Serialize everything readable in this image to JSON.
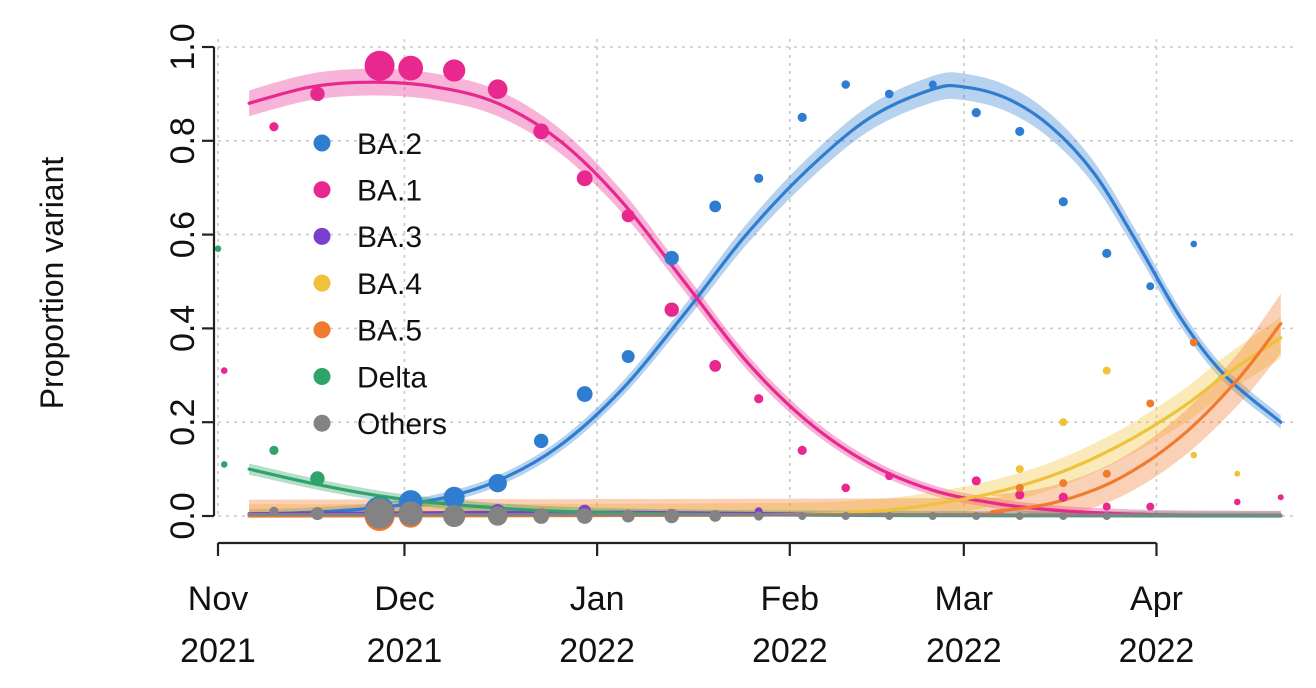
{
  "chart_data": {
    "type": "line",
    "title": "",
    "xlabel": "",
    "ylabel": "Proportion variant",
    "ylim": [
      0,
      1
    ],
    "xlim": [
      "2021-11-01",
      "2022-04-22"
    ],
    "y_ticks": [
      {
        "value": 0.0,
        "label": "0.0"
      },
      {
        "value": 0.2,
        "label": "0.2"
      },
      {
        "value": 0.4,
        "label": "0.4"
      },
      {
        "value": 0.6,
        "label": "0.6"
      },
      {
        "value": 0.8,
        "label": "0.8"
      },
      {
        "value": 1.0,
        "label": "1.0"
      }
    ],
    "x_ticks": [
      {
        "date": "2021-11-01",
        "month": "Nov",
        "year": "2021"
      },
      {
        "date": "2021-12-01",
        "month": "Dec",
        "year": "2021"
      },
      {
        "date": "2022-01-01",
        "month": "Jan",
        "year": "2022"
      },
      {
        "date": "2022-02-01",
        "month": "Feb",
        "year": "2022"
      },
      {
        "date": "2022-03-01",
        "month": "Mar",
        "year": "2022"
      },
      {
        "date": "2022-04-01",
        "month": "Apr",
        "year": "2022"
      }
    ],
    "grid": true,
    "legend_position": "left",
    "series": [
      {
        "name": "BA.2",
        "color": "#2e7dd1",
        "fit_range": [
          "2021-11-06",
          "2022-04-21"
        ],
        "fit": [
          [
            "2021-11-06",
            0.004
          ],
          [
            "2021-11-16",
            0.008
          ],
          [
            "2021-11-26",
            0.017
          ],
          [
            "2021-12-06",
            0.035
          ],
          [
            "2021-12-16",
            0.075
          ],
          [
            "2021-12-26",
            0.15
          ],
          [
            "2022-01-05",
            0.27
          ],
          [
            "2022-01-15",
            0.43
          ],
          [
            "2022-01-25",
            0.6
          ],
          [
            "2022-02-04",
            0.74
          ],
          [
            "2022-02-14",
            0.85
          ],
          [
            "2022-02-24",
            0.91
          ],
          [
            "2022-03-01",
            0.915
          ],
          [
            "2022-03-08",
            0.89
          ],
          [
            "2022-03-15",
            0.83
          ],
          [
            "2022-03-22",
            0.73
          ],
          [
            "2022-03-29",
            0.58
          ],
          [
            "2022-04-05",
            0.42
          ],
          [
            "2022-04-12",
            0.3
          ],
          [
            "2022-04-21",
            0.2
          ]
        ],
        "band": 0.02,
        "points": [
          [
            "2021-11-27",
            0.01,
            2
          ],
          [
            "2021-12-02",
            0.03,
            1.5
          ],
          [
            "2021-12-09",
            0.04,
            1.3
          ],
          [
            "2021-12-16",
            0.07,
            1.1
          ],
          [
            "2021-12-23",
            0.16,
            0.8
          ],
          [
            "2021-12-30",
            0.26,
            0.9
          ],
          [
            "2022-01-06",
            0.34,
            0.7
          ],
          [
            "2022-01-13",
            0.55,
            0.8
          ],
          [
            "2022-01-20",
            0.66,
            0.6
          ],
          [
            "2022-01-27",
            0.72,
            0.4
          ],
          [
            "2022-02-03",
            0.85,
            0.4
          ],
          [
            "2022-02-10",
            0.92,
            0.35
          ],
          [
            "2022-02-17",
            0.9,
            0.35
          ],
          [
            "2022-02-24",
            0.92,
            0.3
          ],
          [
            "2022-03-03",
            0.86,
            0.4
          ],
          [
            "2022-03-10",
            0.82,
            0.4
          ],
          [
            "2022-03-17",
            0.67,
            0.4
          ],
          [
            "2022-03-24",
            0.56,
            0.4
          ],
          [
            "2022-03-31",
            0.49,
            0.3
          ],
          [
            "2022-04-07",
            0.58,
            0.2
          ]
        ]
      },
      {
        "name": "BA.1",
        "color": "#e8288e",
        "fit_range": [
          "2021-11-06",
          "2022-04-21"
        ],
        "fit": [
          [
            "2021-11-06",
            0.88
          ],
          [
            "2021-11-16",
            0.915
          ],
          [
            "2021-11-26",
            0.925
          ],
          [
            "2021-12-06",
            0.915
          ],
          [
            "2021-12-16",
            0.88
          ],
          [
            "2021-12-26",
            0.8
          ],
          [
            "2022-01-05",
            0.67
          ],
          [
            "2022-01-15",
            0.5
          ],
          [
            "2022-01-25",
            0.33
          ],
          [
            "2022-02-04",
            0.2
          ],
          [
            "2022-02-14",
            0.11
          ],
          [
            "2022-02-24",
            0.055
          ],
          [
            "2022-03-06",
            0.027
          ],
          [
            "2022-03-16",
            0.012
          ],
          [
            "2022-03-26",
            0.005
          ],
          [
            "2022-04-05",
            0.002
          ],
          [
            "2022-04-21",
            0.001
          ]
        ],
        "band": 0.02,
        "points": [
          [
            "2021-11-02",
            0.31,
            0.2
          ],
          [
            "2021-11-10",
            0.83,
            0.4
          ],
          [
            "2021-11-17",
            0.9,
            0.8
          ],
          [
            "2021-11-27",
            0.96,
            2
          ],
          [
            "2021-12-02",
            0.955,
            1.6
          ],
          [
            "2021-12-09",
            0.95,
            1.4
          ],
          [
            "2021-12-16",
            0.91,
            1.2
          ],
          [
            "2021-12-23",
            0.82,
            0.9
          ],
          [
            "2021-12-30",
            0.72,
            0.9
          ],
          [
            "2022-01-06",
            0.64,
            0.7
          ],
          [
            "2022-01-13",
            0.44,
            0.8
          ],
          [
            "2022-01-20",
            0.32,
            0.6
          ],
          [
            "2022-01-27",
            0.25,
            0.4
          ],
          [
            "2022-02-03",
            0.14,
            0.4
          ],
          [
            "2022-02-10",
            0.06,
            0.35
          ],
          [
            "2022-02-17",
            0.085,
            0.3
          ],
          [
            "2022-03-03",
            0.075,
            0.4
          ],
          [
            "2022-03-10",
            0.045,
            0.4
          ],
          [
            "2022-03-17",
            0.04,
            0.4
          ],
          [
            "2022-03-24",
            0.02,
            0.3
          ],
          [
            "2022-03-31",
            0.02,
            0.3
          ],
          [
            "2022-04-14",
            0.03,
            0.2
          ],
          [
            "2022-04-21",
            0.04,
            0.15
          ]
        ]
      },
      {
        "name": "BA.3",
        "color": "#7b3fd0",
        "fit_range": [
          "2021-11-06",
          "2022-04-21"
        ],
        "fit": [
          [
            "2021-11-06",
            0.005
          ],
          [
            "2021-12-06",
            0.007
          ],
          [
            "2022-01-05",
            0.008
          ],
          [
            "2022-02-04",
            0.004
          ],
          [
            "2022-03-06",
            0.002
          ],
          [
            "2022-04-21",
            0.001
          ]
        ],
        "band": 0.004,
        "points": [
          [
            "2021-12-16",
            0.01,
            0.8
          ],
          [
            "2021-12-30",
            0.01,
            0.7
          ],
          [
            "2022-01-27",
            0.01,
            0.3
          ]
        ]
      },
      {
        "name": "BA.4",
        "color": "#f0c23a",
        "fit_range": [
          "2021-11-06",
          "2022-04-21"
        ],
        "fit": [
          [
            "2021-11-06",
            0.0
          ],
          [
            "2022-01-25",
            0.002
          ],
          [
            "2022-02-14",
            0.01
          ],
          [
            "2022-02-24",
            0.025
          ],
          [
            "2022-03-06",
            0.05
          ],
          [
            "2022-03-16",
            0.09
          ],
          [
            "2022-03-26",
            0.15
          ],
          [
            "2022-04-05",
            0.23
          ],
          [
            "2022-04-12",
            0.3
          ],
          [
            "2022-04-21",
            0.38
          ]
        ],
        "band": 0.05,
        "points": [
          [
            "2022-03-10",
            0.1,
            0.3
          ],
          [
            "2022-03-17",
            0.2,
            0.3
          ],
          [
            "2022-03-24",
            0.31,
            0.3
          ],
          [
            "2022-04-07",
            0.13,
            0.2
          ],
          [
            "2022-04-14",
            0.09,
            0.15
          ]
        ]
      },
      {
        "name": "BA.5",
        "color": "#f07a2e",
        "fit_range": [
          "2021-11-06",
          "2022-04-21"
        ],
        "fit": [
          [
            "2021-11-06",
            0.0
          ],
          [
            "2022-02-24",
            0.003
          ],
          [
            "2022-03-06",
            0.01
          ],
          [
            "2022-03-16",
            0.03
          ],
          [
            "2022-03-26",
            0.08
          ],
          [
            "2022-04-05",
            0.17
          ],
          [
            "2022-04-14",
            0.29
          ],
          [
            "2022-04-21",
            0.41
          ]
        ],
        "band": 0.07,
        "points": [
          [
            "2021-11-27",
            0.0,
            2
          ],
          [
            "2021-12-02",
            0.0,
            1.5
          ],
          [
            "2022-03-10",
            0.06,
            0.3
          ],
          [
            "2022-03-17",
            0.07,
            0.3
          ],
          [
            "2022-03-24",
            0.09,
            0.3
          ],
          [
            "2022-03-31",
            0.24,
            0.3
          ],
          [
            "2022-04-07",
            0.37,
            0.3
          ]
        ]
      },
      {
        "name": "Delta",
        "color": "#2fa36a",
        "fit_range": [
          "2021-11-06",
          "2022-04-21"
        ],
        "fit": [
          [
            "2021-11-06",
            0.1
          ],
          [
            "2021-11-16",
            0.07
          ],
          [
            "2021-11-26",
            0.045
          ],
          [
            "2021-12-06",
            0.028
          ],
          [
            "2021-12-16",
            0.017
          ],
          [
            "2021-12-26",
            0.01
          ],
          [
            "2022-01-15",
            0.004
          ],
          [
            "2022-02-14",
            0.001
          ],
          [
            "2022-04-21",
            0.0
          ]
        ],
        "band": 0.02,
        "points": [
          [
            "2021-11-01",
            0.57,
            0.2
          ],
          [
            "2021-11-02",
            0.11,
            0.2
          ],
          [
            "2021-11-10",
            0.14,
            0.4
          ],
          [
            "2021-11-17",
            0.08,
            0.8
          ],
          [
            "2021-11-27",
            0.02,
            1.2
          ]
        ]
      },
      {
        "name": "Others",
        "color": "#838383",
        "fit_range": [
          "2021-11-06",
          "2022-04-21"
        ],
        "fit": [
          [
            "2021-11-06",
            0.003
          ],
          [
            "2022-04-21",
            0.002
          ]
        ],
        "band": 0.003,
        "points": [
          [
            "2021-11-10",
            0.01,
            0.4
          ],
          [
            "2021-11-17",
            0.005,
            0.7
          ],
          [
            "2021-11-27",
            0.005,
            2
          ],
          [
            "2021-12-02",
            0.005,
            1.6
          ],
          [
            "2021-12-09",
            0.0,
            1.4
          ],
          [
            "2021-12-16",
            0.0,
            1.2
          ],
          [
            "2021-12-23",
            0.0,
            0.9
          ],
          [
            "2021-12-30",
            0.0,
            0.9
          ],
          [
            "2022-01-06",
            0.0,
            0.7
          ],
          [
            "2022-01-13",
            0.0,
            0.8
          ],
          [
            "2022-01-20",
            0.0,
            0.6
          ],
          [
            "2022-01-27",
            0.0,
            0.4
          ],
          [
            "2022-02-03",
            0.0,
            0.3
          ],
          [
            "2022-02-10",
            0.0,
            0.3
          ],
          [
            "2022-02-17",
            0.0,
            0.3
          ],
          [
            "2022-02-24",
            0.0,
            0.3
          ],
          [
            "2022-03-03",
            0.0,
            0.3
          ],
          [
            "2022-03-10",
            0.0,
            0.3
          ],
          [
            "2022-03-17",
            0.0,
            0.3
          ],
          [
            "2022-03-24",
            0.0,
            0.3
          ]
        ]
      }
    ]
  }
}
